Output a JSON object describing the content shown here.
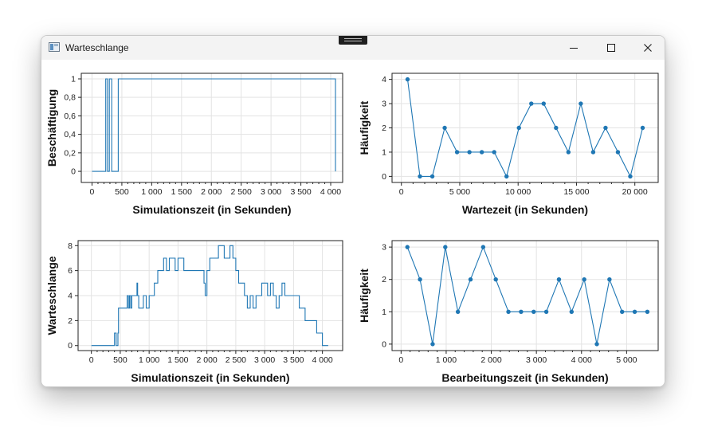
{
  "window": {
    "title": "Warteschlange",
    "controls": [
      "minimize",
      "maximize",
      "close"
    ]
  },
  "chart_data": [
    {
      "id": "busy",
      "type": "line",
      "step": true,
      "markers": false,
      "xlabel": "Simulationszeit (in Sekunden)",
      "ylabel": "Beschäftigung",
      "xlim": [
        -180,
        4200
      ],
      "ylim": [
        -0.12,
        1.06
      ],
      "xticks": [
        0,
        500,
        1000,
        1500,
        2000,
        2500,
        3000,
        3500,
        4000
      ],
      "xtick_labels": [
        "0",
        "500",
        "1 000",
        "1 500",
        "2 000",
        "2 500",
        "3 000",
        "3 500",
        "4 000"
      ],
      "yticks": [
        0,
        0.2,
        0.4,
        0.6,
        0.8,
        1
      ],
      "ytick_labels": [
        "0",
        "0,2",
        "0,4",
        "0,6",
        "0,8",
        "1"
      ],
      "grid": true,
      "color": "#1f77b4",
      "x": [
        0,
        230,
        230,
        260,
        260,
        290,
        290,
        330,
        330,
        440,
        440,
        4080,
        4080
      ],
      "y": [
        0,
        0,
        1,
        1,
        0,
        0,
        1,
        1,
        0,
        0,
        1,
        1,
        0
      ]
    },
    {
      "id": "wait-hist",
      "type": "line",
      "markers": true,
      "xlabel": "Wartezeit (in Sekunden)",
      "ylabel": "Häufigkeit",
      "xlim": [
        -800,
        22000
      ],
      "ylim": [
        -0.25,
        4.25
      ],
      "xticks": [
        0,
        5000,
        10000,
        15000,
        20000
      ],
      "xtick_labels": [
        "0",
        "5 000",
        "10 000",
        "15 000",
        "20 000"
      ],
      "yticks": [
        0,
        1,
        2,
        3,
        4
      ],
      "ytick_labels": [
        "0",
        "1",
        "2",
        "3",
        "4"
      ],
      "grid": true,
      "color": "#1f77b4",
      "x": [
        530,
        1590,
        2650,
        3710,
        4770,
        5830,
        6890,
        7950,
        9010,
        10070,
        11130,
        12190,
        13250,
        14310,
        15370,
        16430,
        17490,
        18550,
        19610,
        20670
      ],
      "y": [
        4,
        0,
        0,
        2,
        1,
        1,
        1,
        1,
        0,
        2,
        3,
        3,
        2,
        1,
        3,
        1,
        2,
        1,
        0,
        2
      ]
    },
    {
      "id": "queue",
      "type": "line",
      "step": true,
      "markers": false,
      "xlabel": "Simulationszeit (in Sekunden)",
      "ylabel": "Warteschlange",
      "xlim": [
        -230,
        4350
      ],
      "ylim": [
        -0.4,
        8.4
      ],
      "xticks": [
        0,
        500,
        1000,
        1500,
        2000,
        2500,
        3000,
        3500,
        4000
      ],
      "xtick_labels": [
        "0",
        "500",
        "1 000",
        "1 500",
        "2 000",
        "2 500",
        "3 000",
        "3 500",
        "4 000"
      ],
      "yticks": [
        0,
        2,
        4,
        6,
        8
      ],
      "ytick_labels": [
        "0",
        "2",
        "4",
        "6",
        "8"
      ],
      "grid": true,
      "color": "#1f77b4",
      "x": [
        0,
        400,
        430,
        460,
        470,
        500,
        520,
        540,
        620,
        640,
        660,
        680,
        700,
        720,
        760,
        790,
        800,
        820,
        850,
        870,
        900,
        950,
        1000,
        1050,
        1090,
        1110,
        1150,
        1200,
        1250,
        1300,
        1350,
        1400,
        1450,
        1500,
        1550,
        1600,
        1650,
        1700,
        1750,
        1800,
        1880,
        1950,
        1970,
        2000,
        2050,
        2100,
        2150,
        2200,
        2300,
        2350,
        2400,
        2450,
        2500,
        2550,
        2600,
        2650,
        2700,
        2750,
        2800,
        2850,
        2900,
        2950,
        3000,
        3050,
        3100,
        3150,
        3200,
        3250,
        3300,
        3350,
        3400,
        3500,
        3600,
        3700,
        3800,
        3900,
        4000,
        4100
      ],
      "y": [
        0,
        1,
        0,
        1,
        3,
        3,
        3,
        3,
        4,
        3,
        4,
        3,
        4,
        4,
        4,
        5,
        4,
        3,
        3,
        3,
        4,
        3,
        4,
        4,
        5,
        5,
        6,
        6,
        7,
        6,
        7,
        7,
        6,
        7,
        7,
        6,
        6,
        6,
        6,
        6,
        6,
        5,
        4,
        6,
        7,
        7,
        7,
        8,
        7,
        7,
        8,
        7,
        6,
        5,
        5,
        4,
        3,
        4,
        3,
        4,
        4,
        5,
        5,
        4,
        5,
        4,
        3,
        4,
        5,
        4,
        4,
        4,
        3,
        2,
        2,
        1,
        0,
        0
      ]
    },
    {
      "id": "service-hist",
      "type": "line",
      "markers": true,
      "xlabel": "Bearbeitungszeit (in Sekunden)",
      "ylabel": "Häufigkeit",
      "xlim": [
        -200,
        5700
      ],
      "ylim": [
        -0.2,
        3.2
      ],
      "xticks": [
        0,
        1000,
        2000,
        3000,
        4000,
        5000
      ],
      "xtick_labels": [
        "0",
        "1 000",
        "2 000",
        "3 000",
        "4 000",
        "5 000"
      ],
      "yticks": [
        0,
        1,
        2,
        3
      ],
      "ytick_labels": [
        "0",
        "1",
        "2",
        "3"
      ],
      "grid": true,
      "color": "#1f77b4",
      "x": [
        140,
        420,
        700,
        980,
        1260,
        1540,
        1820,
        2100,
        2380,
        2660,
        2940,
        3220,
        3500,
        3780,
        4060,
        4340,
        4620,
        4900,
        5180,
        5460
      ],
      "y": [
        3,
        2,
        0,
        3,
        1,
        2,
        3,
        2,
        1,
        1,
        1,
        1,
        2,
        1,
        2,
        0,
        2,
        1,
        1,
        1
      ]
    }
  ]
}
